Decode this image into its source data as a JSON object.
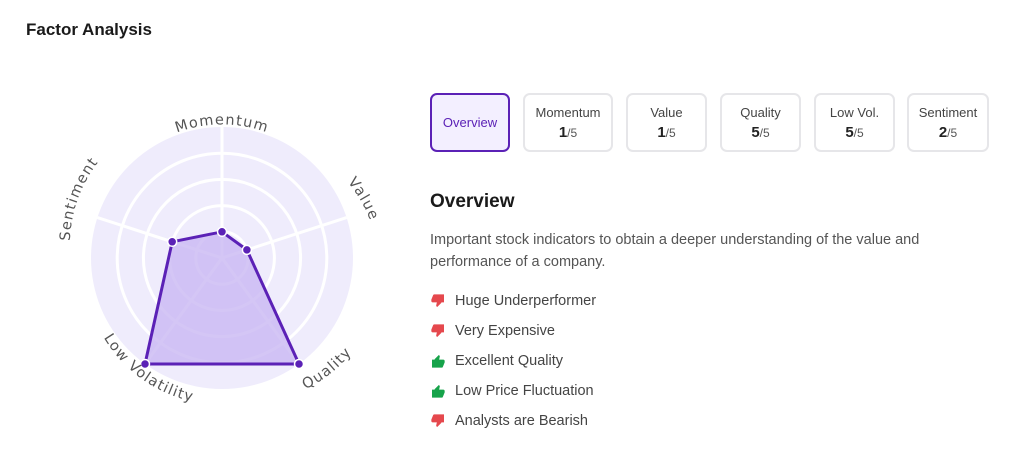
{
  "title": "Factor Analysis",
  "radar": {
    "axes": [
      "Momentum",
      "Value",
      "Quality",
      "Low Volatility",
      "Sentiment"
    ],
    "scores": [
      1,
      1,
      5,
      5,
      2
    ],
    "max_score": 5,
    "colors": {
      "accent": "#5b21b6",
      "area": "#c9b8f2",
      "background": "#efecfc",
      "grid": "#ffffff"
    }
  },
  "tabs": [
    {
      "label": "Overview",
      "score": null,
      "active": true
    },
    {
      "label": "Momentum",
      "score": "1",
      "max": "/5"
    },
    {
      "label": "Value",
      "score": "1",
      "max": "/5"
    },
    {
      "label": "Quality",
      "score": "5",
      "max": "/5"
    },
    {
      "label": "Low Vol.",
      "score": "5",
      "max": "/5"
    },
    {
      "label": "Sentiment",
      "score": "2",
      "max": "/5"
    }
  ],
  "overview": {
    "heading": "Overview",
    "description": "Important stock indicators to obtain a deeper understanding of the value and performance of a company.",
    "items": [
      {
        "icon": "thumbs-down-icon",
        "text": "Huge Underperformer",
        "color": "#e5484d"
      },
      {
        "icon": "thumbs-down-icon",
        "text": "Very Expensive",
        "color": "#e5484d"
      },
      {
        "icon": "thumbs-up-icon",
        "text": "Excellent Quality",
        "color": "#16a34a"
      },
      {
        "icon": "thumbs-up-icon",
        "text": "Low Price Fluctuation",
        "color": "#16a34a"
      },
      {
        "icon": "thumbs-down-icon",
        "text": "Analysts are Bearish",
        "color": "#e5484d"
      }
    ]
  }
}
